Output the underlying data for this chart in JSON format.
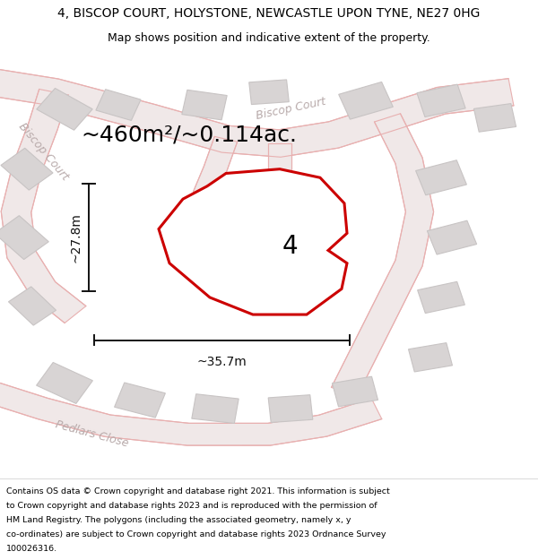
{
  "title": "4, BISCOP COURT, HOLYSTONE, NEWCASTLE UPON TYNE, NE27 0HG",
  "subtitle": "Map shows position and indicative extent of the property.",
  "area_text": "~460m²/~0.114ac.",
  "width_label": "~35.7m",
  "height_label": "~27.8m",
  "property_number": "4",
  "map_background": "#f2eded",
  "footer_lines": [
    "Contains OS data © Crown copyright and database right 2021. This information is subject",
    "to Crown copyright and database rights 2023 and is reproduced with the permission of",
    "HM Land Registry. The polygons (including the associated geometry, namely x, y",
    "co-ordinates) are subject to Crown copyright and database rights 2023 Ordnance Survey",
    "100026316."
  ],
  "road_color": "#e8b0b0",
  "road_fill": "#f0e8e8",
  "building_fill": "#d8d4d4",
  "building_edge": "#c8c4c4",
  "measurement_color": "#111111",
  "poly_edge": "#cc0000",
  "road_label_color": "#b8aaaa",
  "title_fontsize": 10,
  "subtitle_fontsize": 9,
  "area_fontsize": 18,
  "prop_num_fontsize": 20,
  "meas_fontsize": 10,
  "road_label_fontsize": 9,
  "footer_fontsize": 6.8
}
